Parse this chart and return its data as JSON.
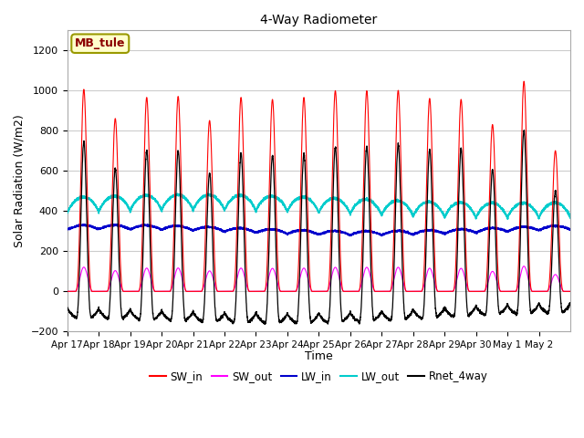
{
  "title": "4-Way Radiometer",
  "xlabel": "Time",
  "ylabel": "Solar Radiation (W/m2)",
  "ylim": [
    -200,
    1300
  ],
  "yticks": [
    -200,
    0,
    200,
    400,
    600,
    800,
    1000,
    1200
  ],
  "x_tick_labels": [
    "Apr 17",
    "Apr 18",
    "Apr 19",
    "Apr 20",
    "Apr 21",
    "Apr 22",
    "Apr 23",
    "Apr 24",
    "Apr 25",
    "Apr 26",
    "Apr 27",
    "Apr 28",
    "Apr 29",
    "Apr 30",
    "May 1",
    "May 2"
  ],
  "station_label": "MB_tule",
  "colors": {
    "SW_in": "#ff0000",
    "SW_out": "#ff00ff",
    "LW_in": "#0000cc",
    "LW_out": "#00cccc",
    "Rnet_4way": "#000000"
  },
  "legend_labels": [
    "SW_in",
    "SW_out",
    "LW_in",
    "LW_out",
    "Rnet_4way"
  ],
  "n_days": 16,
  "pts_per_day": 288,
  "sw_in_peaks": [
    1005,
    860,
    965,
    970,
    850,
    965,
    955,
    965,
    998,
    998,
    1000,
    960,
    955,
    830,
    1045,
    700
  ],
  "sw_out_scale": 0.12,
  "lw_in_base": 295,
  "lw_out_base": 380,
  "plot_bg": "#ffffff",
  "fig_bg": "#ffffff",
  "grid_color": "#cccccc"
}
